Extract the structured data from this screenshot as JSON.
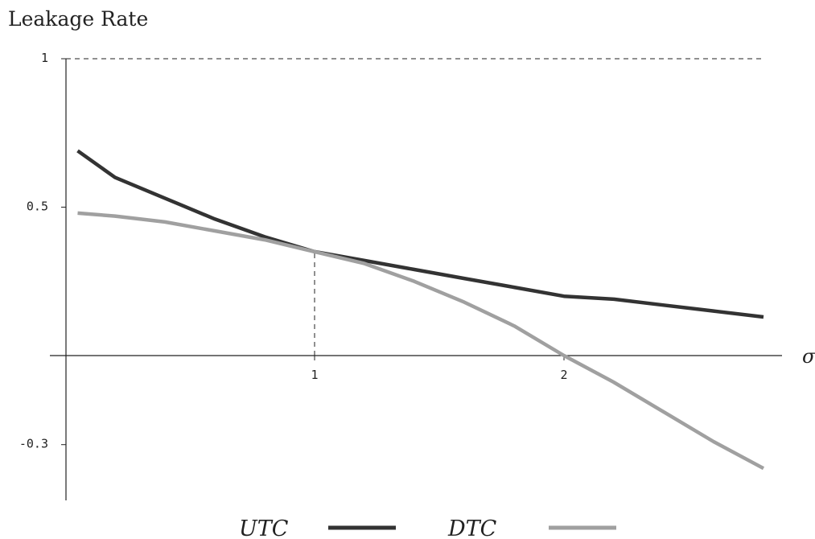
{
  "chart_data": {
    "type": "line",
    "title": "",
    "ylabel": "Leakage Rate",
    "xlabel": "σ",
    "xlim": [
      -0.1,
      2.9
    ],
    "ylim": [
      -0.3,
      1.0
    ],
    "x_ticks": [
      {
        "value": 1,
        "label": "1"
      },
      {
        "value": 2,
        "label": "2"
      }
    ],
    "y_ticks": [
      {
        "value": 1,
        "label": "1"
      },
      {
        "value": 0.5,
        "label": "0.5"
      },
      {
        "value": -0.3,
        "label": "-0.3"
      }
    ],
    "reference_lines": [
      {
        "kind": "horizontal",
        "y": 1
      },
      {
        "kind": "vertical",
        "x": 1,
        "y_to": 0.35
      }
    ],
    "x": [
      0.05,
      0.2,
      0.4,
      0.6,
      0.8,
      1.0,
      1.2,
      1.4,
      1.6,
      1.8,
      2.0,
      2.2,
      2.4,
      2.6,
      2.8
    ],
    "series": [
      {
        "name": "UTC",
        "color": "#333333",
        "values": [
          0.69,
          0.6,
          0.53,
          0.46,
          0.4,
          0.35,
          0.32,
          0.29,
          0.26,
          0.23,
          0.2,
          0.19,
          0.17,
          0.15,
          0.13
        ]
      },
      {
        "name": "DTC",
        "color": "#a0a0a0",
        "values": [
          0.48,
          0.47,
          0.45,
          0.42,
          0.39,
          0.35,
          0.31,
          0.25,
          0.18,
          0.1,
          0.0,
          -0.09,
          -0.19,
          -0.29,
          -0.38
        ]
      }
    ],
    "legend_position": "bottom",
    "grid": false
  }
}
